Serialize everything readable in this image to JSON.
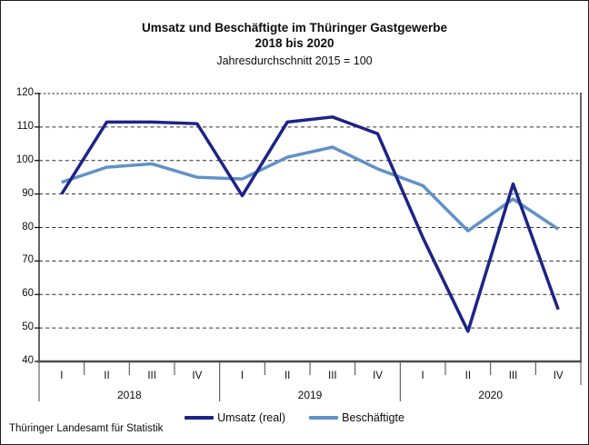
{
  "title": {
    "line1": "Umsatz und Beschäftigte im Thüringer Gastgewerbe",
    "line2": "2018 bis 2020",
    "subtitle": "Jahresdurchschnitt 2015 = 100"
  },
  "footer": "Thüringer Landesamt für Statistik",
  "chart_data": {
    "type": "line",
    "title": "Umsatz und Beschäftigte im Thüringer Gastgewerbe 2018 bis 2020",
    "subtitle": "Jahresdurchschnitt 2015 = 100",
    "ylim": [
      40,
      120
    ],
    "yticks": [
      40,
      50,
      60,
      70,
      80,
      90,
      100,
      110,
      120
    ],
    "grid": "dashed-horizontal",
    "legend_position": "bottom",
    "x_groups": [
      {
        "year": "2018",
        "quarters": [
          "I",
          "II",
          "III",
          "IV"
        ]
      },
      {
        "year": "2019",
        "quarters": [
          "I",
          "II",
          "III",
          "IV"
        ]
      },
      {
        "year": "2020",
        "quarters": [
          "I",
          "II",
          "III",
          "IV"
        ]
      }
    ],
    "categories": [
      "2018-I",
      "2018-II",
      "2018-III",
      "2018-IV",
      "2019-I",
      "2019-II",
      "2019-III",
      "2019-IV",
      "2020-I",
      "2020-II",
      "2020-III",
      "2020-IV"
    ],
    "series": [
      {
        "name": "Umsatz (real)",
        "color": "#1C2487",
        "values": [
          90,
          111.5,
          111.5,
          111,
          89.5,
          111.5,
          113,
          108,
          77,
          49,
          93,
          55.5
        ]
      },
      {
        "name": "Beschäftigte",
        "color": "#6191C6",
        "values": [
          93.5,
          98,
          99,
          95,
          94.5,
          101,
          104,
          97.5,
          92.5,
          79,
          88.5,
          79.5
        ]
      }
    ]
  }
}
